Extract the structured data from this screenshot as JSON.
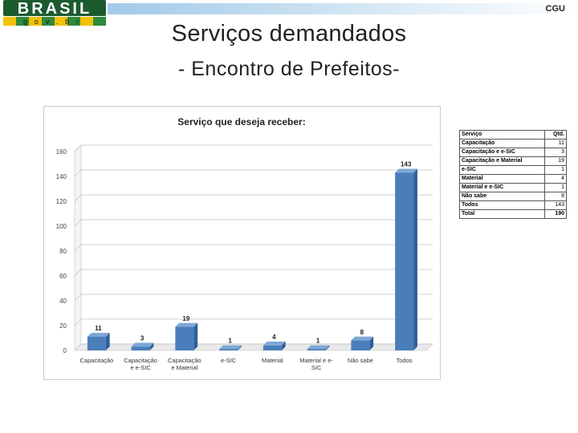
{
  "header": {
    "logo_text": "BRASIL",
    "logo_subtext": "gov.br",
    "org": "CGU"
  },
  "title": "Serviços demandados",
  "subtitle": "- Encontro de Prefeitos-",
  "chart_data": {
    "type": "bar",
    "title": "Serviço que deseja receber:",
    "categories": [
      "Capacitação",
      "Capacitação e e-SIC",
      "Capacitação e Material",
      "e-SIC",
      "Material",
      "Material e e-SIC",
      "Não sabe",
      "Todos"
    ],
    "category_lines": [
      [
        "Capacitação"
      ],
      [
        "Capacitação",
        "e e-SIC"
      ],
      [
        "Capacitação",
        "e Material"
      ],
      [
        "e-SIC"
      ],
      [
        "Material"
      ],
      [
        "Material e e-",
        "SIC"
      ],
      [
        "Não sabe"
      ],
      [
        "Todos"
      ]
    ],
    "values": [
      11,
      3,
      19,
      1,
      4,
      1,
      8,
      143
    ],
    "ylim": [
      0,
      160
    ],
    "yticks": [
      0,
      20,
      40,
      60,
      80,
      100,
      120,
      140,
      160
    ],
    "xlabel": "",
    "ylabel": "",
    "grid": true,
    "bar_color": "#4a7ebb"
  },
  "table": {
    "headers": [
      "Serviço",
      "Qtd."
    ],
    "rows": [
      [
        "Capacitação",
        "11"
      ],
      [
        "Capacitação e e-SIC",
        "3"
      ],
      [
        "Capacitação e Material",
        "19"
      ],
      [
        "e-SIC",
        "1"
      ],
      [
        "Material",
        "4"
      ],
      [
        "Material e e-SIC",
        "1"
      ],
      [
        "Não sabe",
        "8"
      ],
      [
        "Todos",
        "143"
      ]
    ],
    "total": [
      "Total",
      "190"
    ]
  }
}
